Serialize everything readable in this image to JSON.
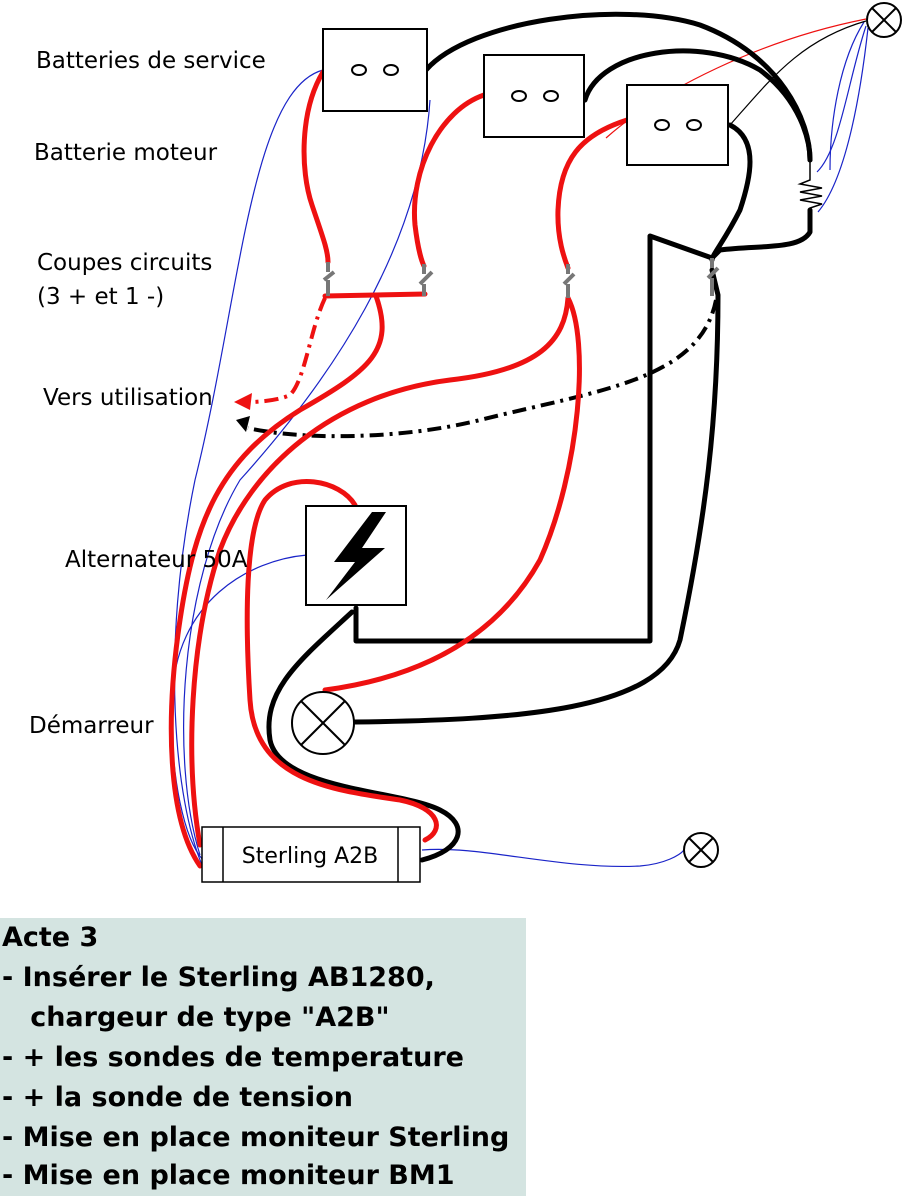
{
  "labels": {
    "service_batteries": "Batteries de service",
    "engine_battery": "Batterie moteur",
    "breakers": "Coupes circuits",
    "breakers_detail": "(3 + et 1 -)",
    "to_load": "Vers utilisation",
    "alternator": "Alternateur 50A",
    "starter": "Démarreur",
    "charger": "Sterling A2B"
  },
  "notes": {
    "title": "Acte 3",
    "lines": [
      "- Insérer le Sterling AB1280,",
      "   chargeur de type \"A2B\"",
      "- + les sondes de temperature",
      "- + la sonde de tension",
      "- Mise en place moniteur Sterling",
      "- Mise en place moniteur BM1"
    ]
  },
  "colors": {
    "positive_cable": "#ee1111",
    "negative_cable": "#000000",
    "sense_wire": "#1a24c8",
    "notes_background": "#d4e4e1"
  },
  "icons": [
    "battery-icon",
    "breaker-switch-icon",
    "lamp-icon",
    "lightning-bolt-icon",
    "resistor-icon",
    "arrow-icon"
  ]
}
